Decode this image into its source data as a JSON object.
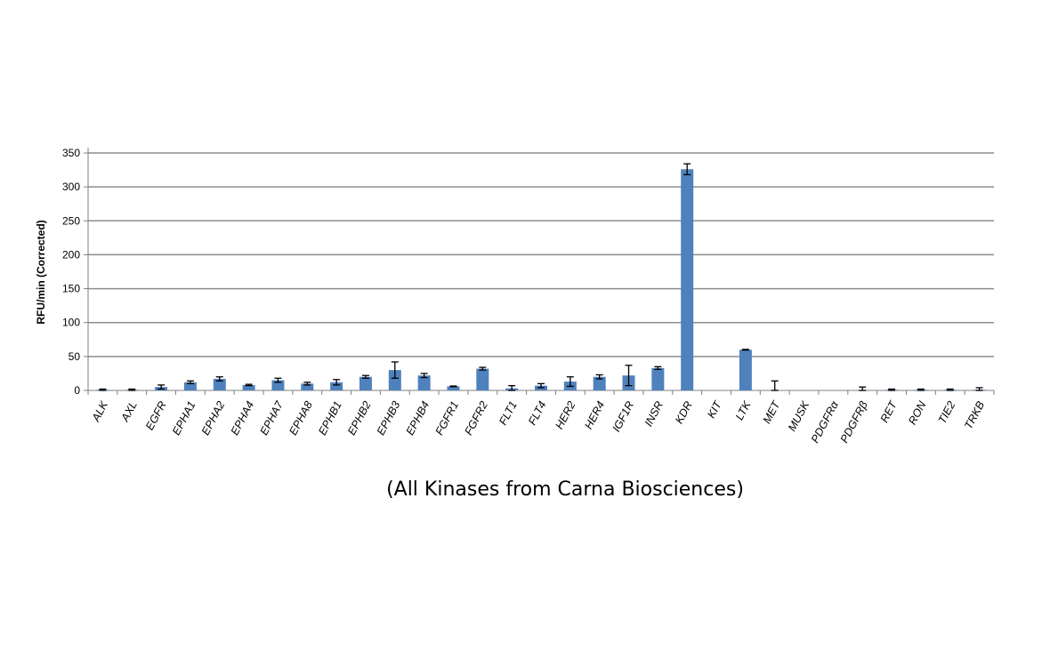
{
  "chart_data": {
    "type": "bar",
    "title": "",
    "xlabel": "(All Kinases from Carna Biosciences)",
    "ylabel": "RFU/min (Corrected)",
    "ylim": [
      0,
      350
    ],
    "yticks": [
      0,
      50,
      100,
      150,
      200,
      250,
      300,
      350
    ],
    "grid": true,
    "legend": "none",
    "colors": {
      "bar": "#4F81BD",
      "grid": "#8C8C8C",
      "axis": "#808080",
      "error_bar": "#000000"
    },
    "categories": [
      "ALK",
      "AXL",
      "EGFR",
      "EPHA1",
      "EPHA2",
      "EPHA4",
      "EPHA7",
      "EPHA8",
      "EPHB1",
      "EPHB2",
      "EPHB3",
      "EPHB4",
      "FGFR1",
      "FGFR2",
      "FLT1",
      "FLT4",
      "HER2",
      "HER4",
      "IGF1R",
      "INSR",
      "KDR",
      "KIT",
      "LTK",
      "MET",
      "MUSK",
      "PDGFRα",
      "PDGFRβ",
      "RET",
      "RON",
      "TIE2",
      "TRKB"
    ],
    "values": [
      1,
      1,
      5,
      12,
      17,
      8,
      15,
      10,
      12,
      20,
      30,
      22,
      6,
      32,
      3,
      7,
      13,
      20,
      22,
      33,
      326,
      0,
      60,
      0,
      0,
      0,
      0,
      1,
      1,
      1,
      1
    ],
    "errors": [
      1,
      1,
      3,
      2,
      3,
      1,
      3,
      2,
      4,
      2,
      12,
      3,
      0.5,
      2,
      4,
      3,
      7,
      3,
      15,
      2,
      8,
      0,
      0.5,
      14,
      0,
      0,
      5,
      1,
      1,
      1,
      3
    ]
  }
}
